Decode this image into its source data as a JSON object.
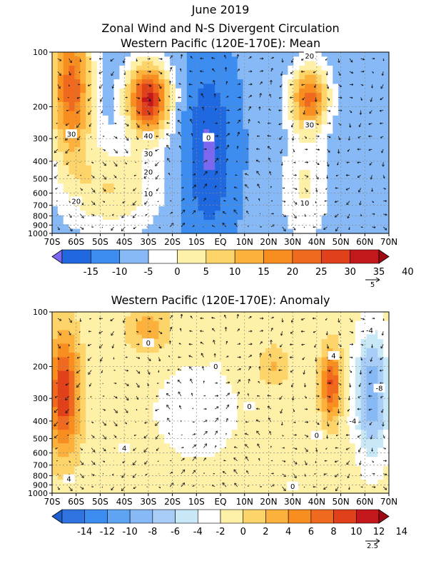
{
  "header": {
    "line1": "June 2019",
    "line2": "Zonal Wind and N-S Divergent Circulation",
    "line3": "Western Pacific (120E-170E): Mean"
  },
  "chart_data": [
    {
      "type": "heatmap",
      "title": "Western Pacific (120E-170E): Mean",
      "x_ticks": [
        "70S",
        "60S",
        "50S",
        "40S",
        "30S",
        "20S",
        "10S",
        "EQ",
        "10N",
        "20N",
        "30N",
        "40N",
        "50N",
        "60N",
        "70N"
      ],
      "y_ticks": [
        "100",
        "200",
        "300",
        "400",
        "500",
        "600",
        "700",
        "800",
        "900",
        "1000"
      ],
      "y_scale": "log-pressure",
      "grid": true,
      "colorbar_labels": [
        "-15",
        "-10",
        "-5",
        "0",
        "5",
        "10",
        "15",
        "20",
        "25",
        "30",
        "35",
        "40"
      ],
      "colorbar_colors": [
        "#7b68ee",
        "#1f68e0",
        "#3d8df0",
        "#86b9f5",
        "#ffffff",
        "#fff0a8",
        "#fdd46a",
        "#fbb13c",
        "#f98e20",
        "#ef6a1e",
        "#e0401a",
        "#c4171c",
        "#9e0a12"
      ],
      "contour_labels": [
        "30",
        "40",
        "30",
        "20",
        "10",
        "20",
        "20",
        "30",
        "10",
        "0"
      ],
      "vector_reference": "5"
    },
    {
      "type": "heatmap",
      "title": "Western Pacific (120E-170E): Anomaly",
      "x_ticks": [
        "70S",
        "60S",
        "50S",
        "40S",
        "30S",
        "20S",
        "10S",
        "EQ",
        "10N",
        "20N",
        "30N",
        "40N",
        "50N",
        "60N",
        "70N"
      ],
      "y_ticks": [
        "100",
        "200",
        "300",
        "400",
        "500",
        "600",
        "700",
        "800",
        "900",
        "1000"
      ],
      "y_scale": "log-pressure",
      "grid": true,
      "colorbar_labels": [
        "-14",
        "-12",
        "-10",
        "-8",
        "-6",
        "-4",
        "-2",
        "0",
        "2",
        "4",
        "6",
        "8",
        "10",
        "12",
        "14"
      ],
      "colorbar_colors": [
        "#1f5fd0",
        "#2f74e0",
        "#3d8df0",
        "#5ea4f3",
        "#86b9f5",
        "#a8cef7",
        "#c8e8f8",
        "#ffffff",
        "#fff0a8",
        "#fdd46a",
        "#fbb13c",
        "#f98e20",
        "#ef6a1e",
        "#e0401a",
        "#c4171c",
        "#9e0a12"
      ],
      "contour_labels": [
        "0",
        "0",
        "4",
        "-4",
        "-8",
        "0",
        "4",
        "0",
        "0",
        "4",
        "-4"
      ],
      "vector_reference": "2.5"
    }
  ]
}
